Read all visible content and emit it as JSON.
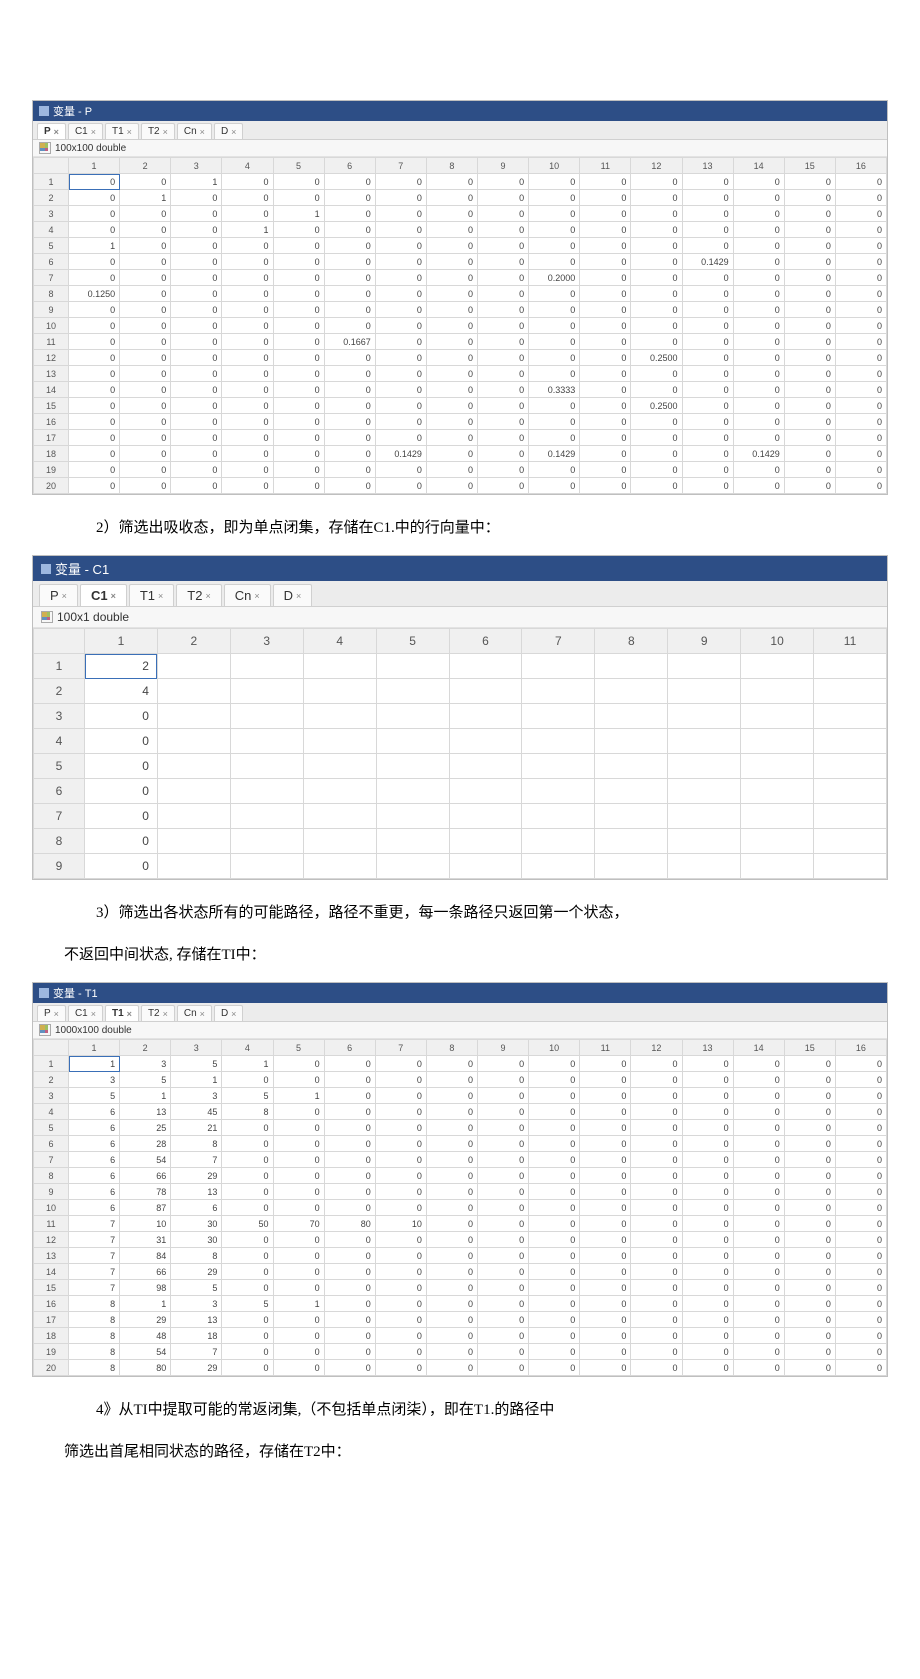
{
  "titlePrefix": "变量 -",
  "tabs": [
    "P",
    "C1",
    "T1",
    "T2",
    "Cn",
    "D"
  ],
  "p": {
    "title": "变量 - P",
    "activeTab": "P",
    "info": "100x100 double",
    "cols": 16,
    "rows": [
      [
        "0",
        "0",
        "1",
        "0",
        "0",
        "0",
        "0",
        "0",
        "0",
        "0",
        "0",
        "0",
        "0",
        "0",
        "0",
        "0"
      ],
      [
        "0",
        "1",
        "0",
        "0",
        "0",
        "0",
        "0",
        "0",
        "0",
        "0",
        "0",
        "0",
        "0",
        "0",
        "0",
        "0"
      ],
      [
        "0",
        "0",
        "0",
        "0",
        "1",
        "0",
        "0",
        "0",
        "0",
        "0",
        "0",
        "0",
        "0",
        "0",
        "0",
        "0"
      ],
      [
        "0",
        "0",
        "0",
        "1",
        "0",
        "0",
        "0",
        "0",
        "0",
        "0",
        "0",
        "0",
        "0",
        "0",
        "0",
        "0"
      ],
      [
        "1",
        "0",
        "0",
        "0",
        "0",
        "0",
        "0",
        "0",
        "0",
        "0",
        "0",
        "0",
        "0",
        "0",
        "0",
        "0"
      ],
      [
        "0",
        "0",
        "0",
        "0",
        "0",
        "0",
        "0",
        "0",
        "0",
        "0",
        "0",
        "0",
        "0.1429",
        "0",
        "0",
        "0"
      ],
      [
        "0",
        "0",
        "0",
        "0",
        "0",
        "0",
        "0",
        "0",
        "0",
        "0.2000",
        "0",
        "0",
        "0",
        "0",
        "0",
        "0"
      ],
      [
        "0.1250",
        "0",
        "0",
        "0",
        "0",
        "0",
        "0",
        "0",
        "0",
        "0",
        "0",
        "0",
        "0",
        "0",
        "0",
        "0"
      ],
      [
        "0",
        "0",
        "0",
        "0",
        "0",
        "0",
        "0",
        "0",
        "0",
        "0",
        "0",
        "0",
        "0",
        "0",
        "0",
        "0"
      ],
      [
        "0",
        "0",
        "0",
        "0",
        "0",
        "0",
        "0",
        "0",
        "0",
        "0",
        "0",
        "0",
        "0",
        "0",
        "0",
        "0"
      ],
      [
        "0",
        "0",
        "0",
        "0",
        "0",
        "0.1667",
        "0",
        "0",
        "0",
        "0",
        "0",
        "0",
        "0",
        "0",
        "0",
        "0"
      ],
      [
        "0",
        "0",
        "0",
        "0",
        "0",
        "0",
        "0",
        "0",
        "0",
        "0",
        "0",
        "0.2500",
        "0",
        "0",
        "0",
        "0"
      ],
      [
        "0",
        "0",
        "0",
        "0",
        "0",
        "0",
        "0",
        "0",
        "0",
        "0",
        "0",
        "0",
        "0",
        "0",
        "0",
        "0"
      ],
      [
        "0",
        "0",
        "0",
        "0",
        "0",
        "0",
        "0",
        "0",
        "0",
        "0.3333",
        "0",
        "0",
        "0",
        "0",
        "0",
        "0"
      ],
      [
        "0",
        "0",
        "0",
        "0",
        "0",
        "0",
        "0",
        "0",
        "0",
        "0",
        "0",
        "0.2500",
        "0",
        "0",
        "0",
        "0"
      ],
      [
        "0",
        "0",
        "0",
        "0",
        "0",
        "0",
        "0",
        "0",
        "0",
        "0",
        "0",
        "0",
        "0",
        "0",
        "0",
        "0"
      ],
      [
        "0",
        "0",
        "0",
        "0",
        "0",
        "0",
        "0",
        "0",
        "0",
        "0",
        "0",
        "0",
        "0",
        "0",
        "0",
        "0"
      ],
      [
        "0",
        "0",
        "0",
        "0",
        "0",
        "0",
        "0.1429",
        "0",
        "0",
        "0.1429",
        "0",
        "0",
        "0",
        "0.1429",
        "0",
        "0"
      ],
      [
        "0",
        "0",
        "0",
        "0",
        "0",
        "0",
        "0",
        "0",
        "0",
        "0",
        "0",
        "0",
        "0",
        "0",
        "0",
        "0"
      ],
      [
        "0",
        "0",
        "0",
        "0",
        "0",
        "0",
        "0",
        "0",
        "0",
        "0",
        "0",
        "0",
        "0",
        "0",
        "0",
        "0"
      ]
    ],
    "selected": "0"
  },
  "para1": "2）筛选出吸收态，即为单点闭集，存储在C1.中的行向量中：",
  "c1": {
    "title": "变量 - C1",
    "activeTab": "C1",
    "info": "100x1 double",
    "cols": 11,
    "rows": [
      [
        "2",
        "",
        "",
        "",
        "",
        "",
        "",
        "",
        "",
        "",
        ""
      ],
      [
        "4",
        "",
        "",
        "",
        "",
        "",
        "",
        "",
        "",
        "",
        ""
      ],
      [
        "0",
        "",
        "",
        "",
        "",
        "",
        "",
        "",
        "",
        "",
        ""
      ],
      [
        "0",
        "",
        "",
        "",
        "",
        "",
        "",
        "",
        "",
        "",
        ""
      ],
      [
        "0",
        "",
        "",
        "",
        "",
        "",
        "",
        "",
        "",
        "",
        ""
      ],
      [
        "0",
        "",
        "",
        "",
        "",
        "",
        "",
        "",
        "",
        "",
        ""
      ],
      [
        "0",
        "",
        "",
        "",
        "",
        "",
        "",
        "",
        "",
        "",
        ""
      ],
      [
        "0",
        "",
        "",
        "",
        "",
        "",
        "",
        "",
        "",
        "",
        ""
      ],
      [
        "0",
        "",
        "",
        "",
        "",
        "",
        "",
        "",
        "",
        "",
        ""
      ]
    ],
    "selected": "2"
  },
  "para2a": "3）筛选出各状态所有的可能路径，路径不重更，每一条路径只返回第一个状态，",
  "para2b": "不返回中间状态, 存储在TI中：",
  "t1": {
    "title": "变量 - T1",
    "activeTab": "T1",
    "info": "1000x100 double",
    "cols": 16,
    "rows": [
      [
        "1",
        "3",
        "5",
        "1",
        "0",
        "0",
        "0",
        "0",
        "0",
        "0",
        "0",
        "0",
        "0",
        "0",
        "0",
        "0"
      ],
      [
        "3",
        "5",
        "1",
        "0",
        "0",
        "0",
        "0",
        "0",
        "0",
        "0",
        "0",
        "0",
        "0",
        "0",
        "0",
        "0"
      ],
      [
        "5",
        "1",
        "3",
        "5",
        "1",
        "0",
        "0",
        "0",
        "0",
        "0",
        "0",
        "0",
        "0",
        "0",
        "0",
        "0"
      ],
      [
        "6",
        "13",
        "45",
        "8",
        "0",
        "0",
        "0",
        "0",
        "0",
        "0",
        "0",
        "0",
        "0",
        "0",
        "0",
        "0"
      ],
      [
        "6",
        "25",
        "21",
        "0",
        "0",
        "0",
        "0",
        "0",
        "0",
        "0",
        "0",
        "0",
        "0",
        "0",
        "0",
        "0"
      ],
      [
        "6",
        "28",
        "8",
        "0",
        "0",
        "0",
        "0",
        "0",
        "0",
        "0",
        "0",
        "0",
        "0",
        "0",
        "0",
        "0"
      ],
      [
        "6",
        "54",
        "7",
        "0",
        "0",
        "0",
        "0",
        "0",
        "0",
        "0",
        "0",
        "0",
        "0",
        "0",
        "0",
        "0"
      ],
      [
        "6",
        "66",
        "29",
        "0",
        "0",
        "0",
        "0",
        "0",
        "0",
        "0",
        "0",
        "0",
        "0",
        "0",
        "0",
        "0"
      ],
      [
        "6",
        "78",
        "13",
        "0",
        "0",
        "0",
        "0",
        "0",
        "0",
        "0",
        "0",
        "0",
        "0",
        "0",
        "0",
        "0"
      ],
      [
        "6",
        "87",
        "6",
        "0",
        "0",
        "0",
        "0",
        "0",
        "0",
        "0",
        "0",
        "0",
        "0",
        "0",
        "0",
        "0"
      ],
      [
        "7",
        "10",
        "30",
        "50",
        "70",
        "80",
        "10",
        "0",
        "0",
        "0",
        "0",
        "0",
        "0",
        "0",
        "0",
        "0"
      ],
      [
        "7",
        "31",
        "30",
        "0",
        "0",
        "0",
        "0",
        "0",
        "0",
        "0",
        "0",
        "0",
        "0",
        "0",
        "0",
        "0"
      ],
      [
        "7",
        "84",
        "8",
        "0",
        "0",
        "0",
        "0",
        "0",
        "0",
        "0",
        "0",
        "0",
        "0",
        "0",
        "0",
        "0"
      ],
      [
        "7",
        "66",
        "29",
        "0",
        "0",
        "0",
        "0",
        "0",
        "0",
        "0",
        "0",
        "0",
        "0",
        "0",
        "0",
        "0"
      ],
      [
        "7",
        "98",
        "5",
        "0",
        "0",
        "0",
        "0",
        "0",
        "0",
        "0",
        "0",
        "0",
        "0",
        "0",
        "0",
        "0"
      ],
      [
        "8",
        "1",
        "3",
        "5",
        "1",
        "0",
        "0",
        "0",
        "0",
        "0",
        "0",
        "0",
        "0",
        "0",
        "0",
        "0"
      ],
      [
        "8",
        "29",
        "13",
        "0",
        "0",
        "0",
        "0",
        "0",
        "0",
        "0",
        "0",
        "0",
        "0",
        "0",
        "0",
        "0"
      ],
      [
        "8",
        "48",
        "18",
        "0",
        "0",
        "0",
        "0",
        "0",
        "0",
        "0",
        "0",
        "0",
        "0",
        "0",
        "0",
        "0"
      ],
      [
        "8",
        "54",
        "7",
        "0",
        "0",
        "0",
        "0",
        "0",
        "0",
        "0",
        "0",
        "0",
        "0",
        "0",
        "0",
        "0"
      ],
      [
        "8",
        "80",
        "29",
        "0",
        "0",
        "0",
        "0",
        "0",
        "0",
        "0",
        "0",
        "0",
        "0",
        "0",
        "0",
        "0"
      ]
    ],
    "selected": "1"
  },
  "para3a": "4》从TI中提取可能的常返闭集,（不包括单点闭柒），即在T1.的路径中",
  "para3b": "筛选出首尾相同状态的路径，存储在T2中："
}
